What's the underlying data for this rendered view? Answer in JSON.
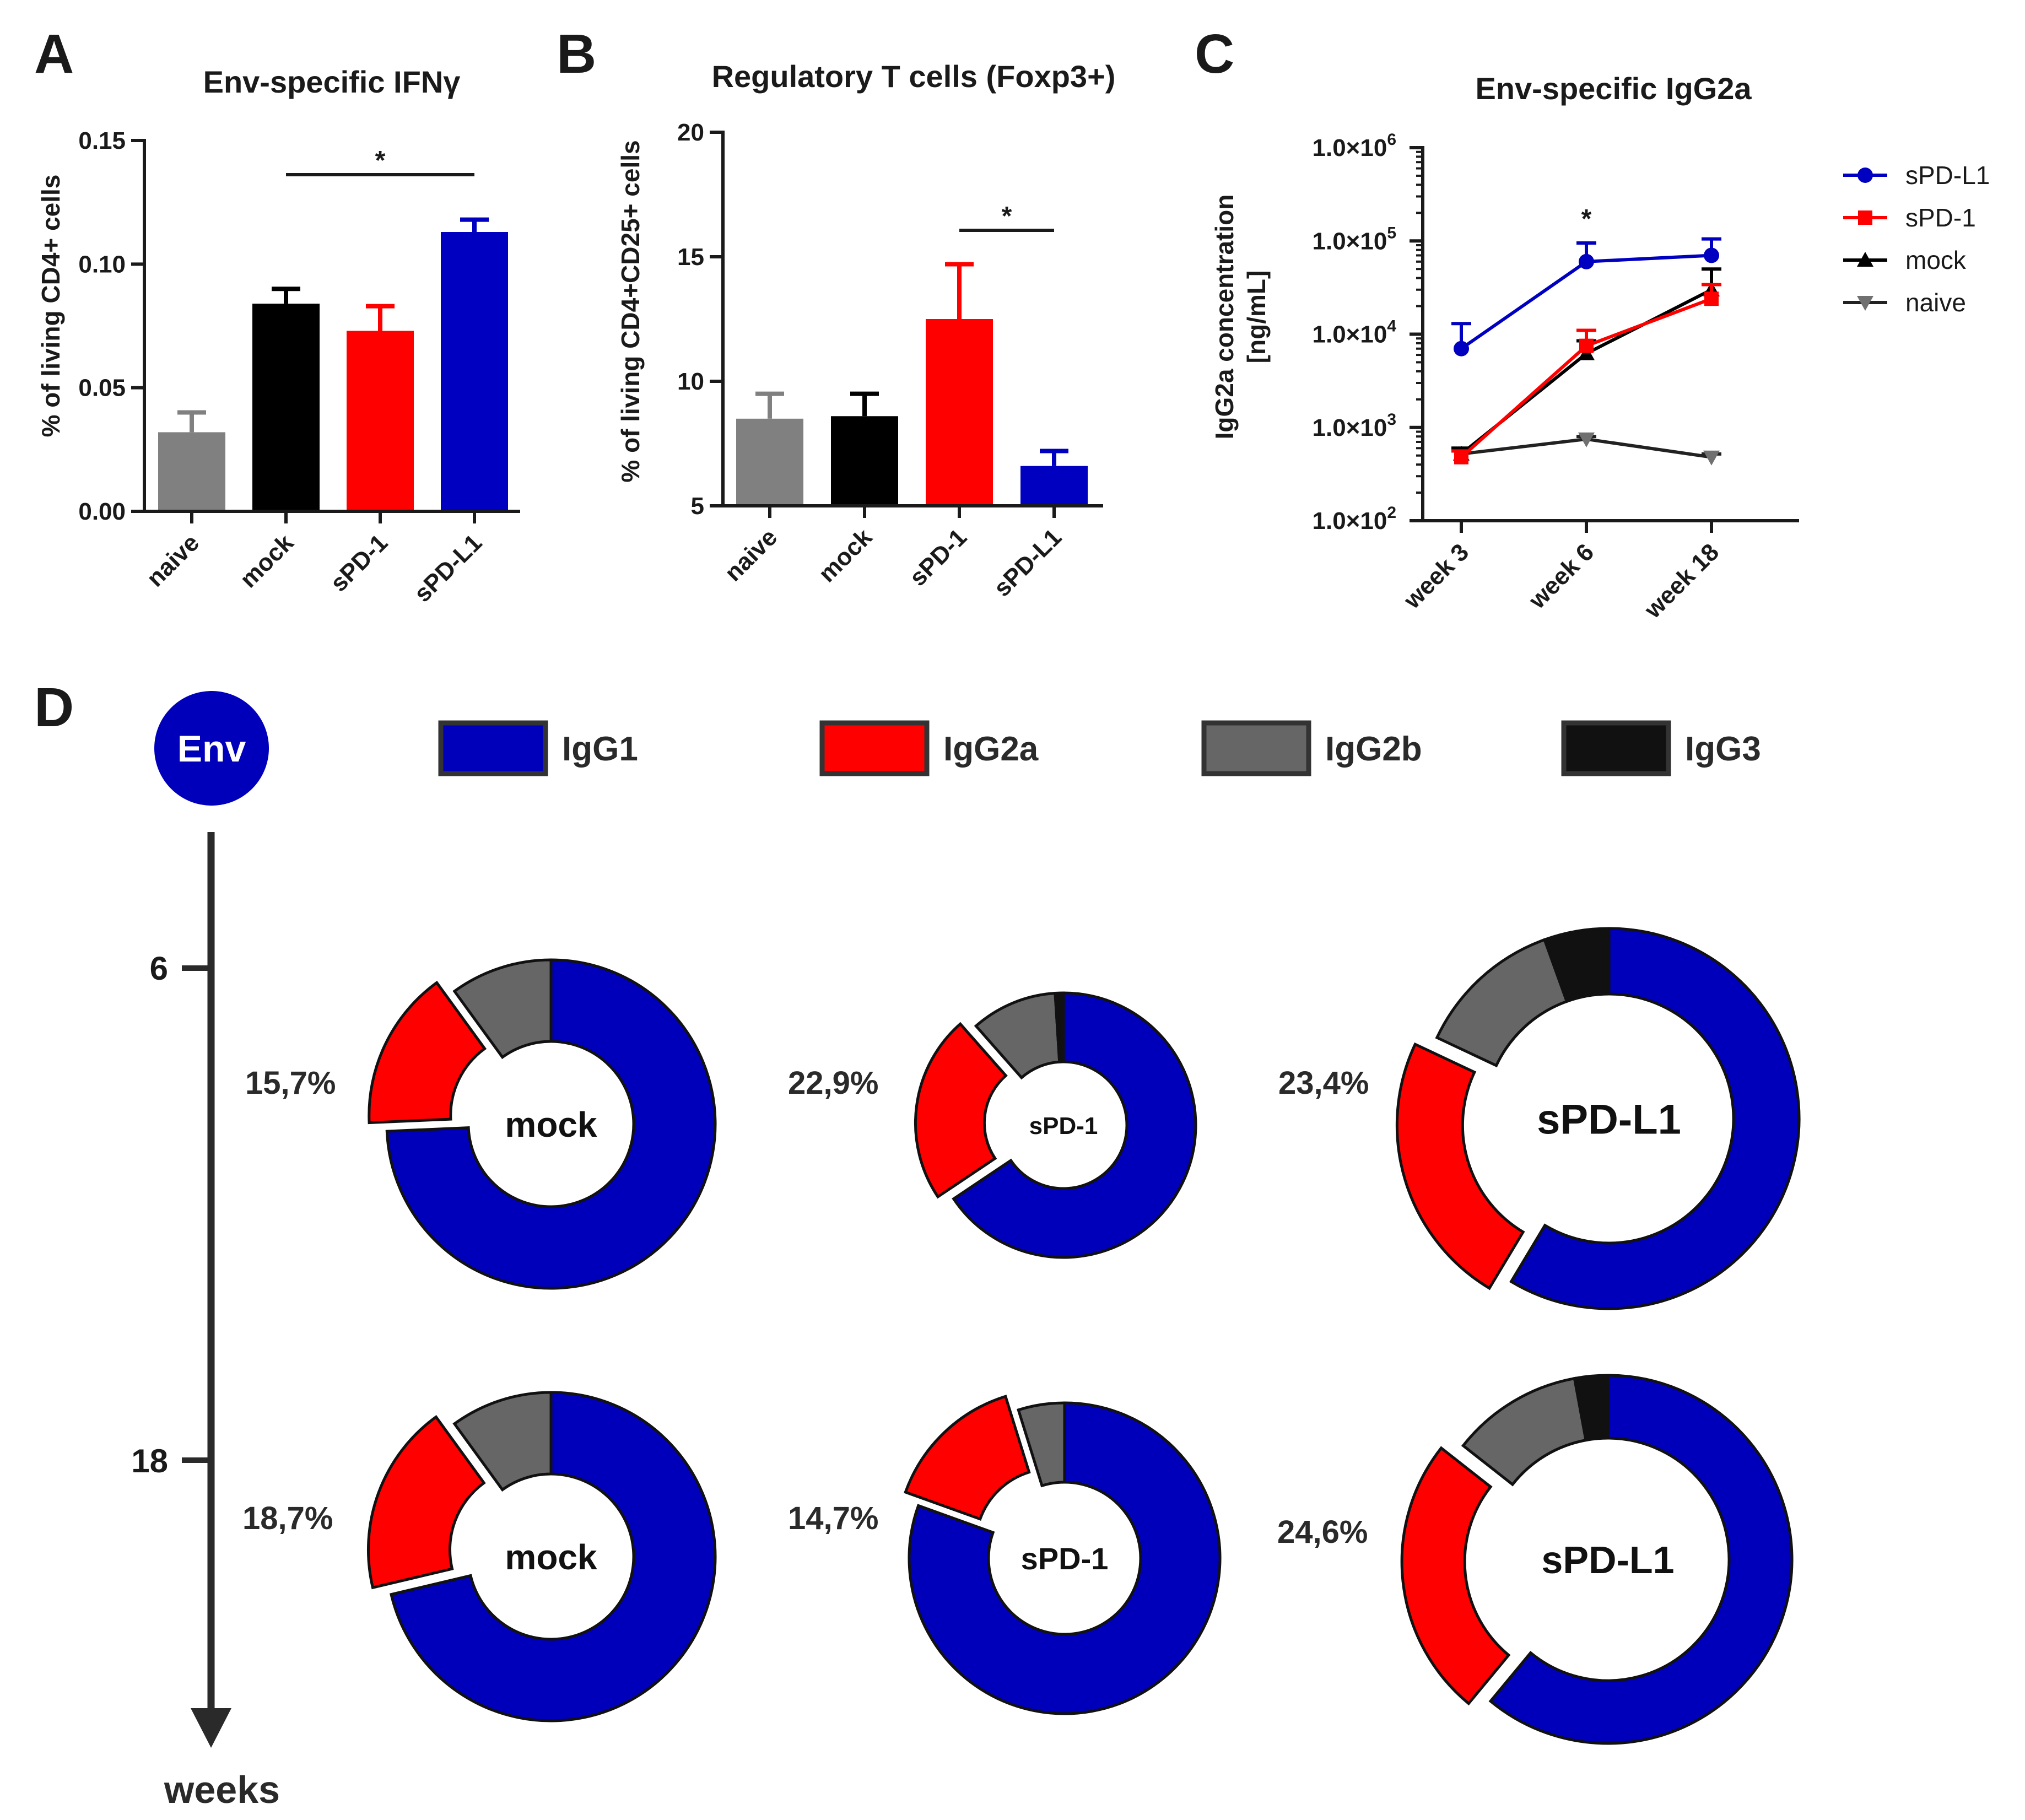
{
  "colors": {
    "naive": "#808080",
    "mock": "#000000",
    "sPD-1": "#ff0000",
    "sPD-L1": "#0000c0",
    "IgG1": "#0000bb",
    "IgG2a": "#ff0000",
    "IgG2b": "#666666",
    "IgG3": "#111111"
  },
  "chart_data": [
    {
      "id": "A",
      "type": "bar",
      "letter": "A",
      "title": "Env-specific IFNγ",
      "ylabel": "% of living CD4+ cells",
      "categories": [
        "naive",
        "mock",
        "sPD-1",
        "sPD-L1"
      ],
      "values": [
        0.032,
        0.084,
        0.073,
        0.113
      ],
      "errors": [
        0.008,
        0.006,
        0.01,
        0.005
      ],
      "ylim": [
        0,
        0.15
      ],
      "yticks": [
        "0.00",
        "0.05",
        "0.10",
        "0.15"
      ],
      "significance": {
        "from": 1,
        "to": 3,
        "label": "*"
      }
    },
    {
      "id": "B",
      "type": "bar",
      "letter": "B",
      "title": "Regulatory T cells (Foxp3+)",
      "ylabel": "% of living CD4+CD25+ cells",
      "categories": [
        "naive",
        "mock",
        "sPD-1",
        "sPD-L1"
      ],
      "values": [
        8.5,
        8.6,
        12.5,
        6.6
      ],
      "errors": [
        1.0,
        0.9,
        2.2,
        0.6
      ],
      "ylim": [
        5,
        20
      ],
      "yticks": [
        "5",
        "10",
        "15",
        "20"
      ],
      "significance": {
        "from": 2,
        "to": 3,
        "label": "*"
      }
    },
    {
      "id": "C",
      "type": "line",
      "letter": "C",
      "title": "Env-specific IgG2a",
      "ylabel": "IgG2a concentration",
      "ylabel2": "[ng/mL]",
      "x": [
        "week 3",
        "week 6",
        "week 18"
      ],
      "yscale": "log",
      "ylim": [
        100,
        1000000
      ],
      "ytick_mantissa": "1.0×10",
      "ytick_exponents": [
        "2",
        "3",
        "4",
        "5",
        "6"
      ],
      "series": [
        {
          "name": "sPD-L1",
          "values": [
            7000,
            60000,
            70000
          ],
          "err_hi": [
            13000,
            95000,
            105000
          ],
          "marker": "circle"
        },
        {
          "name": "sPD-1",
          "values": [
            480,
            7500,
            24000
          ],
          "err_hi": [
            560,
            11000,
            34000
          ],
          "marker": "square"
        },
        {
          "name": "mock",
          "values": [
            520,
            6200,
            30000
          ],
          "err_hi": [
            600,
            8500,
            50000
          ],
          "marker": "triangle-up"
        },
        {
          "name": "naive",
          "values": [
            520,
            750,
            480
          ],
          "err_hi": [
            560,
            800,
            520
          ],
          "marker": "triangle-down"
        }
      ],
      "legend": [
        "sPD-L1",
        "sPD-1",
        "mock",
        "naive"
      ],
      "legend_position": "right",
      "significance": {
        "x_index": 1,
        "label": "*"
      }
    },
    {
      "id": "D",
      "type": "pie",
      "letter": "D",
      "antigen": "Env",
      "legend": [
        "IgG1",
        "IgG2a",
        "IgG2b",
        "IgG3"
      ],
      "timeline_label": "weeks",
      "timepoints": [
        "6",
        "18"
      ],
      "rows": [
        {
          "week": "6",
          "donuts": [
            {
              "group": "mock",
              "label": "mock",
              "pct_label": "15,7%",
              "slices": {
                "IgG1": 74.3,
                "IgG2a": 15.7,
                "IgG2b": 10.0,
                "IgG3": 0.0
              }
            },
            {
              "group": "sPD-1",
              "label": "sPD-1",
              "pct_label": "22,9%",
              "slices": {
                "IgG1": 65.6,
                "IgG2a": 22.9,
                "IgG2b": 10.5,
                "IgG3": 1.0
              }
            },
            {
              "group": "sPD-L1",
              "label": "sPD-L1",
              "pct_label": "23,4%",
              "slices": {
                "IgG1": 58.6,
                "IgG2a": 23.4,
                "IgG2b": 12.5,
                "IgG3": 5.5
              }
            }
          ]
        },
        {
          "week": "18",
          "donuts": [
            {
              "group": "mock",
              "label": "mock",
              "pct_label": "18,7%",
              "slices": {
                "IgG1": 71.3,
                "IgG2a": 18.7,
                "IgG2b": 10.0,
                "IgG3": 0.0
              }
            },
            {
              "group": "sPD-1",
              "label": "sPD-1",
              "pct_label": "14,7%",
              "slices": {
                "IgG1": 80.5,
                "IgG2a": 14.7,
                "IgG2b": 4.8,
                "IgG3": 0.0
              }
            },
            {
              "group": "sPD-L1",
              "label": "sPD-L1",
              "pct_label": "24,6%",
              "slices": {
                "IgG1": 61.0,
                "IgG2a": 24.6,
                "IgG2b": 11.5,
                "IgG3": 2.9
              }
            }
          ]
        }
      ]
    }
  ]
}
